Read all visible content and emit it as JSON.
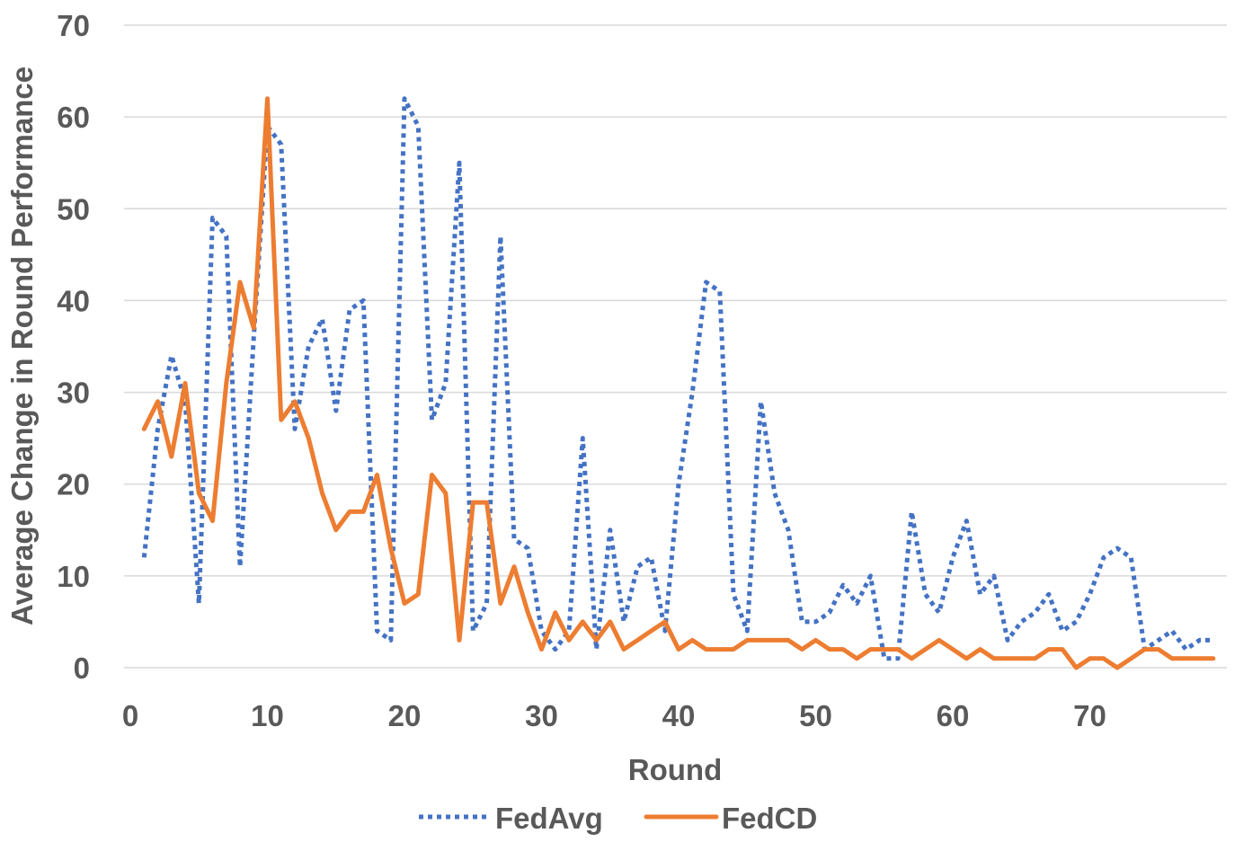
{
  "chart_data": {
    "type": "line",
    "xlabel": "Round",
    "ylabel": "Average Change in Round Performance",
    "xlim": [
      0,
      80
    ],
    "ylim": [
      0,
      70
    ],
    "x_ticks": [
      0,
      10,
      20,
      30,
      40,
      50,
      60,
      70
    ],
    "y_ticks": [
      0,
      10,
      20,
      30,
      40,
      50,
      60,
      70
    ],
    "grid": "horizontal",
    "legend_position": "bottom",
    "series": [
      {
        "name": "FedAvg",
        "color": "#4472C4",
        "style": "dotted",
        "x": [
          1,
          2,
          3,
          4,
          5,
          6,
          7,
          8,
          9,
          10,
          11,
          12,
          13,
          14,
          15,
          16,
          17,
          18,
          19,
          20,
          21,
          22,
          23,
          24,
          25,
          26,
          27,
          28,
          29,
          30,
          31,
          32,
          33,
          34,
          35,
          36,
          37,
          38,
          39,
          40,
          41,
          42,
          43,
          44,
          45,
          46,
          47,
          48,
          49,
          50,
          51,
          52,
          53,
          54,
          55,
          56,
          57,
          58,
          59,
          60,
          61,
          62,
          63,
          64,
          65,
          66,
          67,
          68,
          69,
          70,
          71,
          72,
          73,
          74,
          75,
          76,
          77,
          78,
          79
        ],
        "values": [
          12,
          26,
          34,
          29,
          7,
          49,
          47,
          11,
          36,
          59,
          57,
          26,
          35,
          38,
          28,
          39,
          40,
          4,
          3,
          62,
          59,
          27,
          31,
          55,
          4,
          7,
          47,
          14,
          13,
          4,
          2,
          4,
          25,
          2,
          15,
          5,
          11,
          12,
          4,
          20,
          30,
          42,
          41,
          8,
          4,
          29,
          19,
          15,
          5,
          5,
          6,
          9,
          7,
          10,
          1,
          1,
          17,
          8,
          6,
          12,
          16,
          8,
          10,
          3,
          5,
          6,
          8,
          4,
          5,
          8,
          12,
          13,
          12,
          2,
          3,
          4,
          2,
          3,
          3
        ]
      },
      {
        "name": "FedCD",
        "color": "#ED7D31",
        "style": "solid",
        "x": [
          1,
          2,
          3,
          4,
          5,
          6,
          7,
          8,
          9,
          10,
          11,
          12,
          13,
          14,
          15,
          16,
          17,
          18,
          19,
          20,
          21,
          22,
          23,
          24,
          25,
          26,
          27,
          28,
          29,
          30,
          31,
          32,
          33,
          34,
          35,
          36,
          37,
          38,
          39,
          40,
          41,
          42,
          43,
          44,
          45,
          46,
          47,
          48,
          49,
          50,
          51,
          52,
          53,
          54,
          55,
          56,
          57,
          58,
          59,
          60,
          61,
          62,
          63,
          64,
          65,
          66,
          67,
          68,
          69,
          70,
          71,
          72,
          73,
          74,
          75,
          76,
          77,
          78,
          79
        ],
        "values": [
          26,
          29,
          23,
          31,
          19,
          16,
          31,
          42,
          37,
          62,
          27,
          29,
          25,
          19,
          15,
          17,
          17,
          21,
          13,
          7,
          8,
          21,
          19,
          3,
          18,
          18,
          7,
          11,
          6,
          2,
          6,
          3,
          5,
          3,
          5,
          2,
          3,
          4,
          5,
          2,
          3,
          2,
          2,
          2,
          3,
          3,
          3,
          3,
          2,
          3,
          2,
          2,
          1,
          2,
          2,
          2,
          1,
          2,
          3,
          2,
          1,
          2,
          1,
          1,
          1,
          1,
          2,
          2,
          0,
          1,
          1,
          0,
          1,
          2,
          2,
          1,
          1,
          1,
          1
        ]
      }
    ]
  }
}
